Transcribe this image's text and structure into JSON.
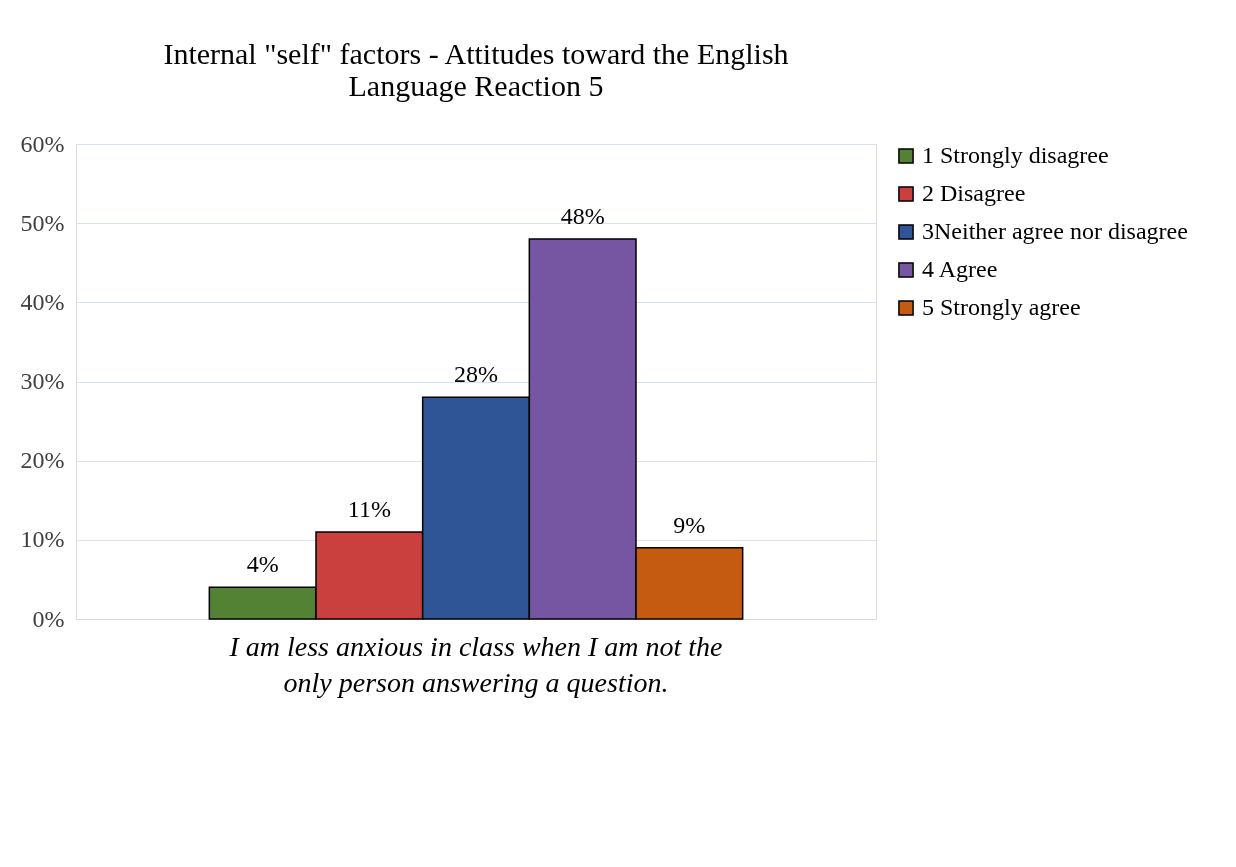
{
  "chart_data": {
    "type": "bar",
    "title": "Internal \"self\" factors - Attitudes toward the English Language Reaction 5",
    "categories": [
      "I am less anxious in class when I am not the only person answering a question."
    ],
    "series": [
      {
        "name": "1 Strongly disagree",
        "color": "#548235",
        "values": [
          4
        ],
        "value_labels": [
          "4%"
        ]
      },
      {
        "name": "2 Disagree",
        "color": "#c9403e",
        "values": [
          11
        ],
        "value_labels": [
          "11%"
        ]
      },
      {
        "name": "3Neither agree nor disagree",
        "color": "#2f5597",
        "values": [
          28
        ],
        "value_labels": [
          "28%"
        ]
      },
      {
        "name": "4 Agree",
        "color": "#7655a3",
        "values": [
          48
        ],
        "value_labels": [
          "48%"
        ]
      },
      {
        "name": "5 Strongly agree",
        "color": "#c55a11",
        "values": [
          9
        ],
        "value_labels": [
          "9%"
        ]
      }
    ],
    "ylim": [
      0,
      60
    ],
    "yticks": [
      {
        "value": 0,
        "label": "0%"
      },
      {
        "value": 10,
        "label": "10%"
      },
      {
        "value": 20,
        "label": "20%"
      },
      {
        "value": 30,
        "label": "30%"
      },
      {
        "value": 40,
        "label": "40%"
      },
      {
        "value": 50,
        "label": "50%"
      },
      {
        "value": 60,
        "label": "60%"
      }
    ],
    "grid": "y",
    "legend": "right"
  }
}
